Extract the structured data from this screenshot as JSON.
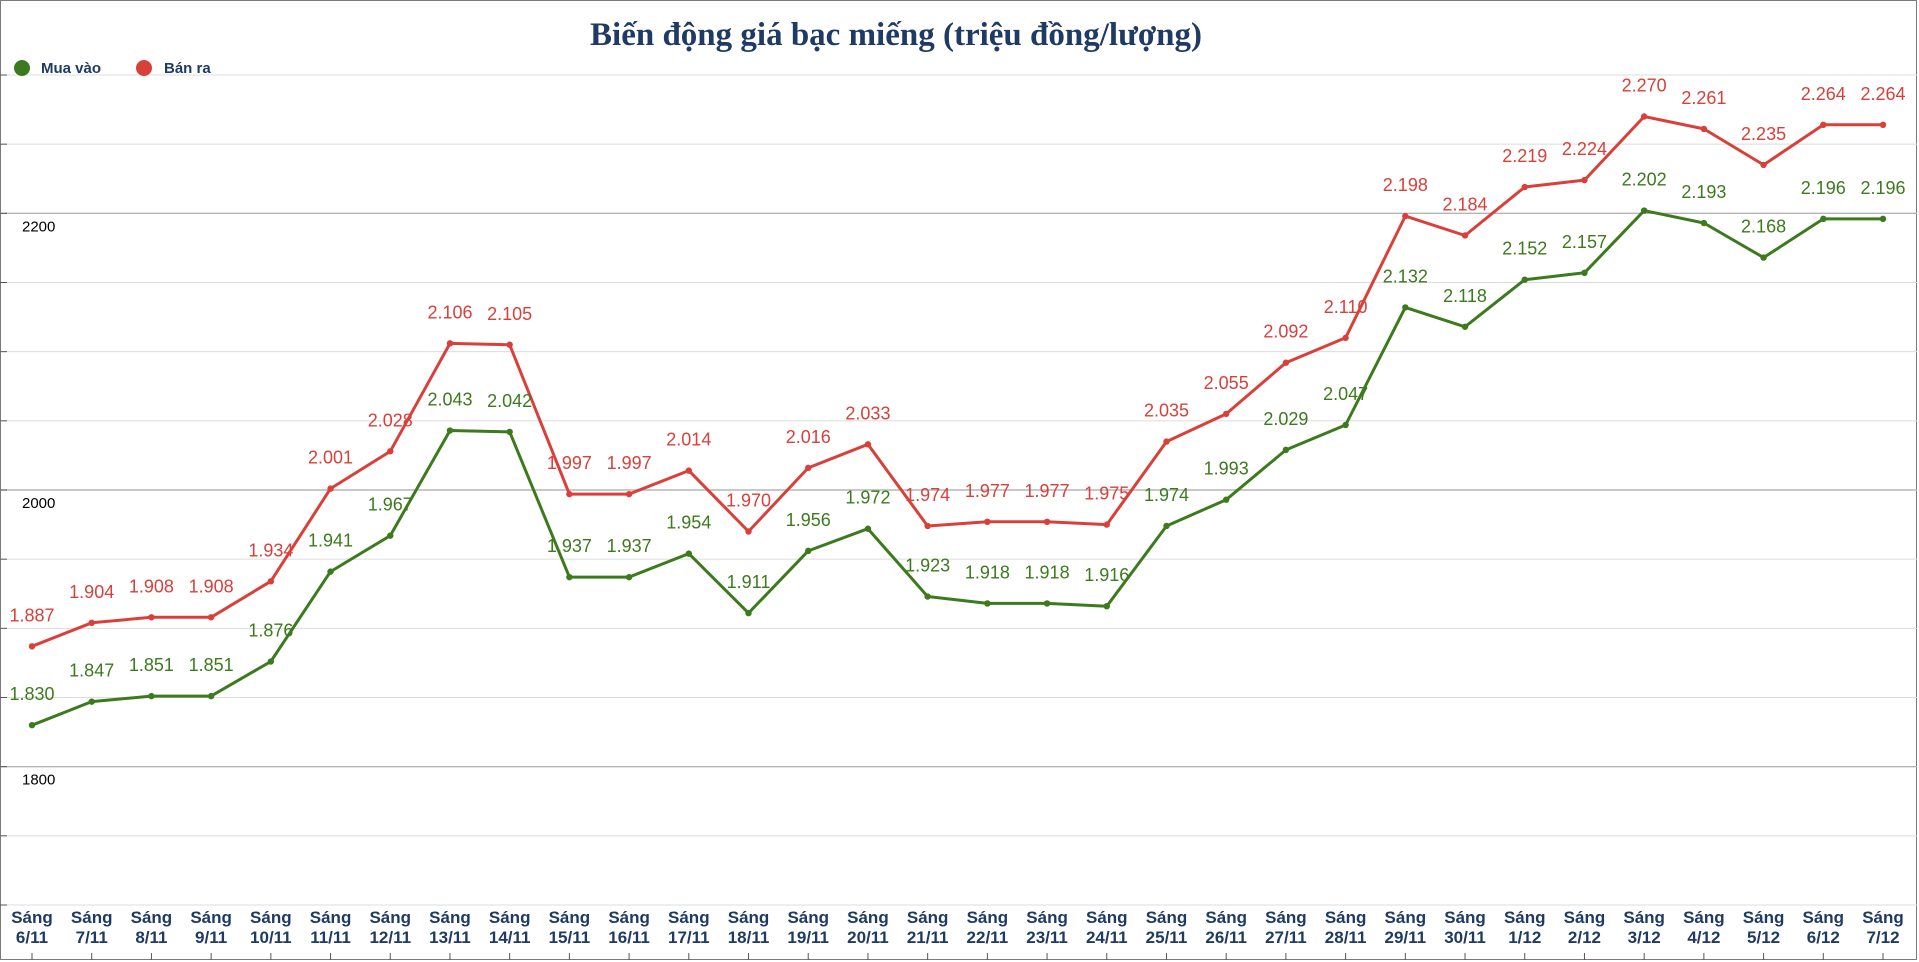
{
  "chart_data": {
    "type": "line",
    "title": "Biến động giá bạc miếng (triệu đồng/lượng)",
    "xlabel": "",
    "ylabel": "",
    "ylim": [
      1700,
      2300
    ],
    "yticks": [
      "2200",
      "2000",
      "1800"
    ],
    "grid": true,
    "legend_position": "top-left",
    "categories": [
      [
        "Sáng",
        "6/11"
      ],
      [
        "Sáng",
        "7/11"
      ],
      [
        "Sáng",
        "8/11"
      ],
      [
        "Sáng",
        "9/11"
      ],
      [
        "Sáng",
        "10/11"
      ],
      [
        "Sáng",
        "11/11"
      ],
      [
        "Sáng",
        "12/11"
      ],
      [
        "Sáng",
        "13/11"
      ],
      [
        "Sáng",
        "14/11"
      ],
      [
        "Sáng",
        "15/11"
      ],
      [
        "Sáng",
        "16/11"
      ],
      [
        "Sáng",
        "17/11"
      ],
      [
        "Sáng",
        "18/11"
      ],
      [
        "Sáng",
        "19/11"
      ],
      [
        "Sáng",
        "20/11"
      ],
      [
        "Sáng",
        "21/11"
      ],
      [
        "Sáng",
        "22/11"
      ],
      [
        "Sáng",
        "23/11"
      ],
      [
        "Sáng",
        "24/11"
      ],
      [
        "Sáng",
        "25/11"
      ],
      [
        "Sáng",
        "26/11"
      ],
      [
        "Sáng",
        "27/11"
      ],
      [
        "Sáng",
        "28/11"
      ],
      [
        "Sáng",
        "29/11"
      ],
      [
        "Sáng",
        "30/11"
      ],
      [
        "Sáng",
        "1/12"
      ],
      [
        "Sáng",
        "2/12"
      ],
      [
        "Sáng",
        "3/12"
      ],
      [
        "Sáng",
        "4/12"
      ],
      [
        "Sáng",
        "5/12"
      ],
      [
        "Sáng",
        "6/12"
      ],
      [
        "Sáng",
        "7/12"
      ]
    ],
    "series": [
      {
        "name": "Mua vào",
        "color": "#3d7a1e",
        "values": [
          1830,
          1847,
          1851,
          1851,
          1876,
          1941,
          1967,
          2043,
          2042,
          1937,
          1937,
          1954,
          1911,
          1956,
          1972,
          1923,
          1918,
          1918,
          1916,
          1974,
          1993,
          2029,
          2047,
          2132,
          2118,
          2152,
          2157,
          2202,
          2193,
          2168,
          2196,
          2196
        ],
        "labels": [
          "1.830",
          "1.847",
          "1.851",
          "1.851",
          "1.876",
          "1.941",
          "1.967",
          "2.043",
          "2.042",
          "1.937",
          "1.937",
          "1.954",
          "1.911",
          "1.956",
          "1.972",
          "1.923",
          "1.918",
          "1.918",
          "1.916",
          "1.974",
          "1.993",
          "2.029",
          "2.047",
          "2.132",
          "2.118",
          "2.152",
          "2.157",
          "2.202",
          "2.193",
          "2.168",
          "2.196",
          "2.196"
        ]
      },
      {
        "name": "Bán ra",
        "color": "#d9403a",
        "values": [
          1887,
          1904,
          1908,
          1908,
          1934,
          2001,
          2028,
          2106,
          2105,
          1997,
          1997,
          2014,
          1970,
          2016,
          2033,
          1974,
          1977,
          1977,
          1975,
          2035,
          2055,
          2092,
          2110,
          2198,
          2184,
          2219,
          2224,
          2270,
          2261,
          2235,
          2264,
          2264
        ],
        "labels": [
          "1.887",
          "1.904",
          "1.908",
          "1.908",
          "1.934",
          "2.001",
          "2.028",
          "2.106",
          "2.105",
          "1.997",
          "1.997",
          "2.014",
          "1.970",
          "2.016",
          "2.033",
          "1.974",
          "1.977",
          "1.977",
          "1.975",
          "2.035",
          "2.055",
          "2.092",
          "2.110",
          "2.198",
          "2.184",
          "2.219",
          "2.224",
          "2.270",
          "2.261",
          "2.235",
          "2.264",
          "2.264"
        ]
      }
    ]
  }
}
